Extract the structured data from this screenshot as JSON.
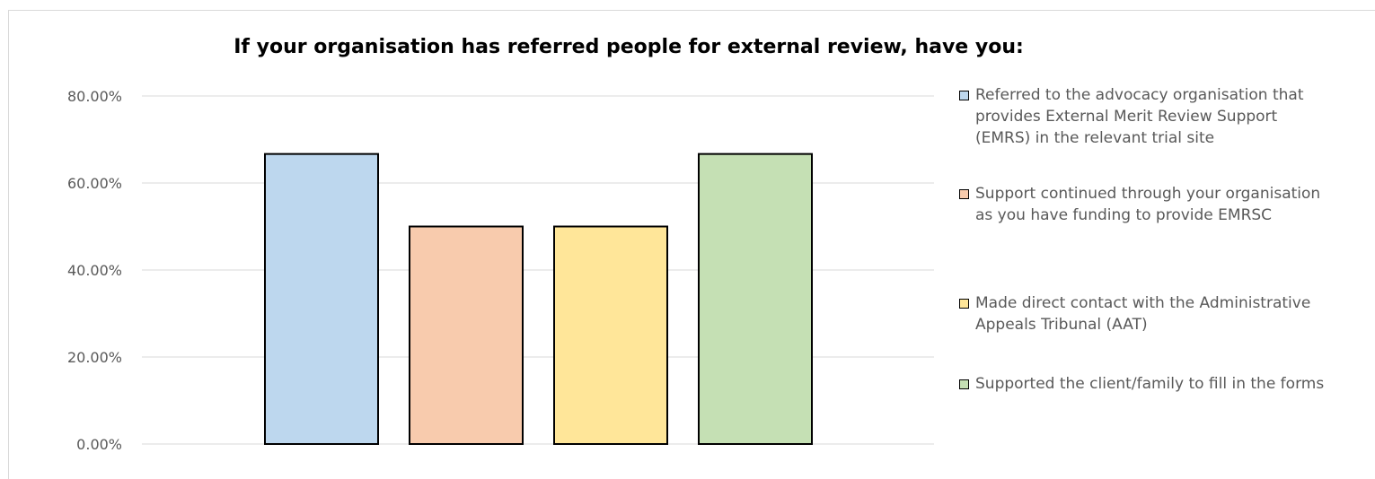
{
  "chart_data": {
    "type": "bar",
    "title": "If your organisation has referred people for external review, have you:",
    "xlabel": "",
    "ylabel": "",
    "ylim": [
      0,
      0.8
    ],
    "yticks": [
      "80.00%",
      "60.00%",
      "40.00%",
      "20.00%",
      "0.00%"
    ],
    "grid": true,
    "legend_position": "right",
    "series": [
      {
        "name": "Referred to the advocacy organisation that provides External Merit Review Support (EMRS) in the relevant trial site",
        "value": 0.6667,
        "color": "#bdd7ee"
      },
      {
        "name": "Support continued through your organisation as you have funding to provide EMRSC",
        "value": 0.5,
        "color": "#f8cbad"
      },
      {
        "name": "Made direct contact with the Administrative Appeals Tribunal (AAT)",
        "value": 0.5,
        "color": "#ffe699"
      },
      {
        "name": "Supported the client/family to fill in the forms",
        "value": 0.6667,
        "color": "#c5e0b4"
      }
    ],
    "legend_lines": [
      "Referred to the advocacy organisation that\nprovides External Merit Review Support\n(EMRS) in the relevant trial site",
      "Support continued through your organisation\nas you have funding to provide EMRSC",
      "Made direct contact with the Administrative\nAppeals Tribunal (AAT)",
      "Supported the client/family to fill in the forms"
    ]
  }
}
